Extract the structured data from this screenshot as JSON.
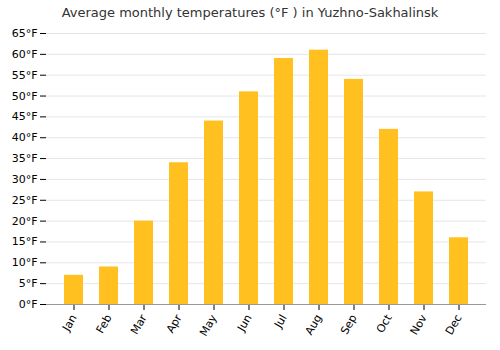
{
  "chart_data": {
    "type": "bar",
    "title": "Average monthly temperatures (°F ) in Yuzhno-Sakhalinsk",
    "categories": [
      "Jan",
      "Feb",
      "Mar",
      "Apr",
      "May",
      "Jun",
      "Jul",
      "Aug",
      "Sep",
      "Oct",
      "Nov",
      "Dec"
    ],
    "values": [
      7,
      9,
      20,
      34,
      44,
      51,
      59,
      61,
      54,
      42,
      27,
      16
    ],
    "color": "#FFC020",
    "ylim": [
      0,
      65
    ],
    "yticks": [
      {
        "value": 0,
        "label": "0°F"
      },
      {
        "value": 5,
        "label": "5°F"
      },
      {
        "value": 10,
        "label": "10°F"
      },
      {
        "value": 15,
        "label": "15°F"
      },
      {
        "value": 20,
        "label": "20°F"
      },
      {
        "value": 25,
        "label": "25°F"
      },
      {
        "value": 30,
        "label": "30°F"
      },
      {
        "value": 35,
        "label": "35°F"
      },
      {
        "value": 40,
        "label": "40°F"
      },
      {
        "value": 45,
        "label": "45°F"
      },
      {
        "value": 50,
        "label": "50°F"
      },
      {
        "value": 55,
        "label": "55°F"
      },
      {
        "value": 60,
        "label": "60°F"
      },
      {
        "value": 65,
        "label": "65°F"
      }
    ],
    "grid": true
  }
}
